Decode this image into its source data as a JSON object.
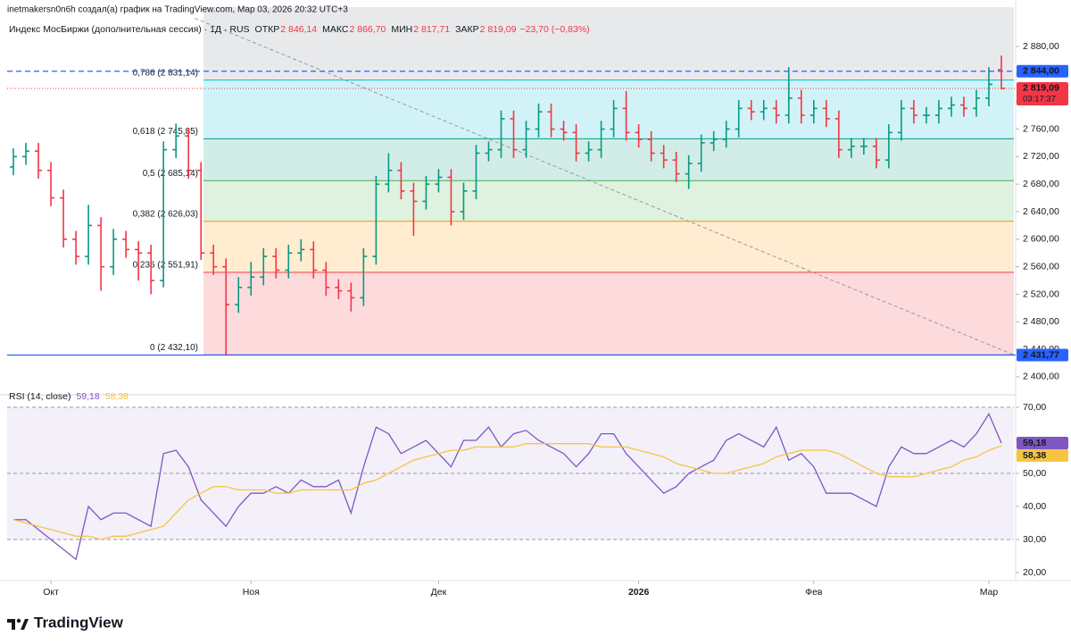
{
  "header": {
    "author_line": "inetmakersn0n6h создал(а) график на TradingView.com, Мар 03, 2026 20:32 UTC+3",
    "symbol": "Индекс МосБиржи (дополнительная сессия) · 1Д · RUS",
    "fields": [
      {
        "label": "ОТКР",
        "value": "2 846,14"
      },
      {
        "label": "МАКС",
        "value": "2 866,70"
      },
      {
        "label": "МИН",
        "value": "2 817,71"
      },
      {
        "label": "ЗАКР",
        "value": "2 819,09"
      }
    ],
    "change": "−23,70 (−0,83%)"
  },
  "brand": "TradingView",
  "chart_data": [
    {
      "type": "ohlc",
      "up_color": "#089981",
      "down_color": "#f23645",
      "x": [
        0,
        1,
        2,
        3,
        4,
        5,
        6,
        7,
        8,
        9,
        10,
        11,
        12,
        13,
        14,
        15,
        16,
        17,
        18,
        19,
        20,
        21,
        22,
        23,
        24,
        25,
        26,
        27,
        28,
        29,
        30,
        31,
        32,
        33,
        34,
        35,
        36,
        37,
        38,
        39,
        40,
        41,
        42,
        43,
        44,
        45,
        46,
        47,
        48,
        49,
        50,
        51,
        52,
        53,
        54,
        55,
        56,
        57,
        58,
        59,
        60,
        61,
        62,
        63,
        64,
        65,
        66,
        67,
        68,
        69,
        70,
        71,
        72,
        73,
        74,
        75,
        76,
        77,
        78,
        79
      ],
      "ohlc": [
        [
          2705,
          2732,
          2693,
          2720
        ],
        [
          2720,
          2740,
          2708,
          2728
        ],
        [
          2728,
          2740,
          2688,
          2700
        ],
        [
          2700,
          2712,
          2648,
          2660
        ],
        [
          2660,
          2672,
          2588,
          2600
        ],
        [
          2600,
          2612,
          2563,
          2575
        ],
        [
          2575,
          2650,
          2563,
          2620
        ],
        [
          2620,
          2632,
          2525,
          2560
        ],
        [
          2560,
          2615,
          2548,
          2600
        ],
        [
          2600,
          2612,
          2573,
          2585
        ],
        [
          2585,
          2597,
          2540,
          2580
        ],
        [
          2580,
          2592,
          2520,
          2540
        ],
        [
          2540,
          2742,
          2530,
          2730
        ],
        [
          2730,
          2768,
          2718,
          2750
        ],
        [
          2750,
          2762,
          2688,
          2700
        ],
        [
          2700,
          2712,
          2570,
          2580
        ],
        [
          2580,
          2592,
          2548,
          2560
        ],
        [
          2560,
          2572,
          2432.1,
          2505
        ],
        [
          2505,
          2545,
          2493,
          2530
        ],
        [
          2530,
          2567,
          2518,
          2545
        ],
        [
          2545,
          2587,
          2533,
          2575
        ],
        [
          2575,
          2587,
          2543,
          2555
        ],
        [
          2555,
          2592,
          2543,
          2580
        ],
        [
          2580,
          2600,
          2568,
          2585
        ],
        [
          2585,
          2597,
          2543,
          2555
        ],
        [
          2555,
          2567,
          2518,
          2530
        ],
        [
          2530,
          2542,
          2513,
          2525
        ],
        [
          2525,
          2537,
          2495,
          2515
        ],
        [
          2515,
          2587,
          2503,
          2575
        ],
        [
          2575,
          2692,
          2563,
          2680
        ],
        [
          2680,
          2725,
          2668,
          2700
        ],
        [
          2700,
          2712,
          2658,
          2670
        ],
        [
          2670,
          2682,
          2605,
          2655
        ],
        [
          2655,
          2692,
          2643,
          2680
        ],
        [
          2680,
          2702,
          2668,
          2690
        ],
        [
          2690,
          2702,
          2620,
          2640
        ],
        [
          2640,
          2682,
          2628,
          2670
        ],
        [
          2670,
          2737,
          2658,
          2725
        ],
        [
          2725,
          2742,
          2713,
          2730
        ],
        [
          2730,
          2787,
          2718,
          2775
        ],
        [
          2775,
          2787,
          2718,
          2730
        ],
        [
          2730,
          2772,
          2718,
          2760
        ],
        [
          2760,
          2797,
          2748,
          2785
        ],
        [
          2785,
          2797,
          2748,
          2760
        ],
        [
          2760,
          2772,
          2743,
          2755
        ],
        [
          2755,
          2767,
          2713,
          2725
        ],
        [
          2725,
          2742,
          2713,
          2730
        ],
        [
          2730,
          2772,
          2718,
          2760
        ],
        [
          2760,
          2802,
          2748,
          2790
        ],
        [
          2790,
          2815,
          2743,
          2755
        ],
        [
          2755,
          2767,
          2733,
          2745
        ],
        [
          2745,
          2757,
          2713,
          2725
        ],
        [
          2725,
          2737,
          2703,
          2715
        ],
        [
          2715,
          2727,
          2683,
          2695
        ],
        [
          2695,
          2722,
          2673,
          2710
        ],
        [
          2710,
          2752,
          2698,
          2740
        ],
        [
          2740,
          2757,
          2728,
          2745
        ],
        [
          2745,
          2772,
          2733,
          2760
        ],
        [
          2760,
          2802,
          2748,
          2790
        ],
        [
          2790,
          2802,
          2773,
          2785
        ],
        [
          2785,
          2802,
          2773,
          2790
        ],
        [
          2790,
          2802,
          2768,
          2780
        ],
        [
          2780,
          2850,
          2768,
          2805
        ],
        [
          2805,
          2817,
          2768,
          2780
        ],
        [
          2780,
          2802,
          2768,
          2790
        ],
        [
          2790,
          2802,
          2763,
          2775
        ],
        [
          2775,
          2787,
          2718,
          2730
        ],
        [
          2730,
          2747,
          2718,
          2735
        ],
        [
          2735,
          2747,
          2723,
          2735
        ],
        [
          2735,
          2747,
          2703,
          2715
        ],
        [
          2715,
          2767,
          2703,
          2755
        ],
        [
          2755,
          2802,
          2743,
          2790
        ],
        [
          2790,
          2802,
          2768,
          2780
        ],
        [
          2780,
          2792,
          2768,
          2780
        ],
        [
          2780,
          2802,
          2768,
          2790
        ],
        [
          2790,
          2807,
          2778,
          2795
        ],
        [
          2795,
          2807,
          2778,
          2790
        ],
        [
          2790,
          2817,
          2778,
          2805
        ],
        [
          2805,
          2850,
          2793,
          2825
        ],
        [
          2846.14,
          2866.7,
          2817.71,
          2819.09
        ]
      ],
      "xlim": [
        -0.5,
        80
      ],
      "xticks": [
        {
          "value": 3,
          "label": "Окт"
        },
        {
          "value": 19,
          "label": "Ноя"
        },
        {
          "value": 34,
          "label": "Дек"
        },
        {
          "value": 50,
          "label": "2026"
        },
        {
          "value": 64,
          "label": "Фев"
        },
        {
          "value": 78,
          "label": "Мар"
        }
      ],
      "ylim": [
        2376.6,
        2937.1
      ],
      "yticks": [
        {
          "value": 2880,
          "label": "2 880,00"
        },
        {
          "value": 2840,
          "label": "2 840,00"
        },
        {
          "value": 2800,
          "label": "2 800,00"
        },
        {
          "value": 2760,
          "label": "2 760,00"
        },
        {
          "value": 2720,
          "label": "2 720,00"
        },
        {
          "value": 2680,
          "label": "2 680,00"
        },
        {
          "value": 2640,
          "label": "2 640,00"
        },
        {
          "value": 2600,
          "label": "2 600,00"
        },
        {
          "value": 2560,
          "label": "2 560,00"
        },
        {
          "value": 2520,
          "label": "2 520,00"
        },
        {
          "value": 2480,
          "label": "2 480,00"
        },
        {
          "value": 2440,
          "label": "2 440,00"
        },
        {
          "value": 2400,
          "label": "2 400,00"
        }
      ],
      "fib": {
        "x_start": 15.2,
        "levels": [
          {
            "level": 0,
            "price": 2432.1,
            "label": "0 (2 432,10)",
            "color": "#787b86"
          },
          {
            "level": 0.236,
            "price": 2551.91,
            "label": "0,236 (2 551,91)",
            "color": "#f23645"
          },
          {
            "level": 0.382,
            "price": 2626.03,
            "label": "0,382 (2 626,03)",
            "color": "#ff9800"
          },
          {
            "level": 0.5,
            "price": 2685.14,
            "label": "0,5 (2 685,14)",
            "color": "#4caf50"
          },
          {
            "level": 0.618,
            "price": 2745.85,
            "label": "0,618 (2 745,85)",
            "color": "#089981"
          },
          {
            "level": 0.786,
            "price": 2831.14,
            "label": "0,786 (2 831,14)",
            "color": "#00bcd4"
          }
        ]
      },
      "trendline": {
        "x": [
          14.5,
          80
        ],
        "y": [
          2921,
          2432
        ],
        "color": "#9598a1"
      },
      "hlines": [
        {
          "price": 2844,
          "label": "2 844,00",
          "color": "#2962ff",
          "style": "dashed"
        },
        {
          "price": 2819.09,
          "label": "2 819,09",
          "sublabel": "03:17:37",
          "color": "#f23645",
          "style": "dotted"
        },
        {
          "price": 2431.77,
          "label": "2 431,77",
          "color": "#2962ff",
          "style": "solid"
        }
      ]
    },
    {
      "type": "line",
      "title": "RSI (14, close)",
      "series": [
        {
          "name": "RSI",
          "color": "#7e57c2",
          "last_label": "59,18",
          "values": [
            36,
            36,
            33,
            30,
            27,
            24,
            40,
            36,
            38,
            38,
            36,
            34,
            56,
            57,
            52,
            42,
            38,
            34,
            40,
            44,
            44,
            46,
            44,
            48,
            46,
            46,
            48,
            38,
            52,
            64,
            62,
            56,
            58,
            60,
            56,
            52,
            60,
            60,
            64,
            58,
            62,
            63,
            60,
            58,
            56,
            52,
            56,
            62,
            62,
            56,
            52,
            48,
            44,
            46,
            50,
            52,
            54,
            60,
            62,
            60,
            58,
            64,
            54,
            56,
            52,
            44,
            44,
            44,
            42,
            40,
            52,
            58,
            56,
            56,
            58,
            60,
            58,
            62,
            68,
            59.18
          ]
        },
        {
          "name": "MA",
          "color": "#f5c542",
          "last_label": "58,38",
          "values": [
            36,
            35,
            34,
            33,
            32,
            31,
            31,
            30,
            31,
            31,
            32,
            33,
            34,
            38,
            42,
            44,
            46,
            46,
            45,
            45,
            45,
            44,
            44,
            45,
            45,
            45,
            45,
            45,
            47,
            48,
            50,
            52,
            54,
            55,
            56,
            57,
            57,
            58,
            58,
            58,
            58,
            59,
            59,
            59,
            59,
            59,
            59,
            58,
            58,
            58,
            57,
            56,
            55,
            53,
            52,
            51,
            50,
            50,
            51,
            52,
            53,
            55,
            56,
            57,
            57,
            57,
            56,
            54,
            52,
            50,
            49,
            49,
            49,
            50,
            51,
            52,
            54,
            55,
            57,
            58.38
          ]
        }
      ],
      "ylim": [
        17.57,
        73.24
      ],
      "yticks": [
        {
          "value": 70,
          "label": "70,00"
        },
        {
          "value": 60,
          "label": "60,00"
        },
        {
          "value": 50,
          "label": "50,00"
        },
        {
          "value": 40,
          "label": "40,00"
        },
        {
          "value": 30,
          "label": "30,00"
        },
        {
          "value": 20,
          "label": "20,00"
        }
      ],
      "bands": [
        70,
        50,
        30
      ]
    }
  ]
}
